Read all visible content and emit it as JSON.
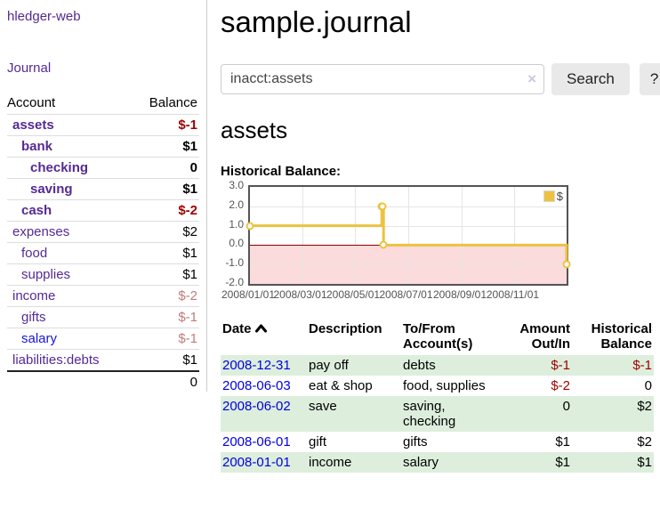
{
  "app": {
    "brand": "hledger-web"
  },
  "sidebar": {
    "journal_link": "Journal",
    "account_header": "Account",
    "balance_header": "Balance",
    "accounts": [
      {
        "label": "assets",
        "indent": 1,
        "bold": true,
        "link_color": "purple",
        "balance": "$-1",
        "balance_class": "neg-strong"
      },
      {
        "label": "bank",
        "indent": 2,
        "bold": true,
        "link_color": "purple",
        "balance": "$1",
        "balance_class": "pos"
      },
      {
        "label": "checking",
        "indent": 3,
        "bold": true,
        "link_color": "purple",
        "balance": "0",
        "balance_class": "pos"
      },
      {
        "label": "saving",
        "indent": 3,
        "bold": true,
        "link_color": "purple",
        "balance": "$1",
        "balance_class": "pos"
      },
      {
        "label": "cash",
        "indent": 2,
        "bold": true,
        "link_color": "purple",
        "balance": "$-2",
        "balance_class": "neg-strong"
      },
      {
        "label": "expenses",
        "indent": 1,
        "bold": false,
        "link_color": "purple",
        "balance": "$2",
        "balance_class": "pos"
      },
      {
        "label": "food",
        "indent": 2,
        "bold": false,
        "link_color": "purple",
        "balance": "$1",
        "balance_class": "pos"
      },
      {
        "label": "supplies",
        "indent": 2,
        "bold": false,
        "link_color": "purple",
        "balance": "$1",
        "balance_class": "pos"
      },
      {
        "label": "income",
        "indent": 1,
        "bold": false,
        "link_color": "purple",
        "balance": "$-2",
        "balance_class": "neg-soft"
      },
      {
        "label": "gifts",
        "indent": 2,
        "bold": false,
        "link_color": "purple",
        "balance": "$-1",
        "balance_class": "neg-soft"
      },
      {
        "label": "salary",
        "indent": 2,
        "bold": false,
        "link_color": "blue",
        "balance": "$-1",
        "balance_class": "neg-soft"
      },
      {
        "label": "liabilities:debts",
        "indent": 1,
        "bold": false,
        "link_color": "purple",
        "balance": "$1",
        "balance_class": "pos"
      }
    ],
    "total": "0"
  },
  "main": {
    "title": "sample.journal",
    "search": {
      "value": "inacct:assets",
      "clear_icon": "×",
      "search_button": "Search",
      "help_button": "?"
    },
    "account_heading": "assets",
    "chart_heading": "Historical Balance:",
    "register": {
      "headers": {
        "date": "Date",
        "description": "Description",
        "accounts": "To/From\nAccount(s)",
        "amount": "Amount\nOut/In",
        "balance": "Historical\nBalance"
      },
      "rows": [
        {
          "date": "2008-12-31",
          "description": "pay off",
          "accounts": "debts",
          "amount": "$-1",
          "amount_class": "neg",
          "balance": "$-1",
          "balance_class": "neg",
          "shaded": true
        },
        {
          "date": "2008-06-03",
          "description": "eat & shop",
          "accounts": "food, supplies",
          "amount": "$-2",
          "amount_class": "neg",
          "balance": "0",
          "balance_class": "pos",
          "shaded": false
        },
        {
          "date": "2008-06-02",
          "description": "save",
          "accounts": "saving,\nchecking",
          "amount": "0",
          "amount_class": "pos",
          "balance": "$2",
          "balance_class": "pos",
          "shaded": true
        },
        {
          "date": "2008-06-01",
          "description": "gift",
          "accounts": "gifts",
          "amount": "$1",
          "amount_class": "pos",
          "balance": "$2",
          "balance_class": "pos",
          "shaded": false
        },
        {
          "date": "2008-01-01",
          "description": "income",
          "accounts": "salary",
          "amount": "$1",
          "amount_class": "pos",
          "balance": "$1",
          "balance_class": "pos",
          "shaded": true
        }
      ]
    }
  },
  "chart_data": {
    "type": "line",
    "title": "Historical Balance",
    "step": true,
    "series": [
      {
        "name": "$",
        "color": "#edc240",
        "points": [
          {
            "x": "2008-01-01",
            "y": 1
          },
          {
            "x": "2008-06-01",
            "y": 2
          },
          {
            "x": "2008-06-02",
            "y": 2
          },
          {
            "x": "2008-06-03",
            "y": 0
          },
          {
            "x": "2008-12-31",
            "y": -1
          }
        ]
      }
    ],
    "xrange": [
      "2008-01-01",
      "2008-12-31"
    ],
    "ylim": [
      -2,
      3
    ],
    "yticks": [
      {
        "label": "3.0",
        "value": 3
      },
      {
        "label": "2.0",
        "value": 2
      },
      {
        "label": "1.0",
        "value": 1
      },
      {
        "label": "0.0",
        "value": 0
      },
      {
        "label": "-1.0",
        "value": -1
      },
      {
        "label": "-2.0",
        "value": -2
      }
    ],
    "xticks": [
      {
        "label": "2008/01/01",
        "date": "2008-01-01"
      },
      {
        "label": "2008/03/01",
        "date": "2008-03-01"
      },
      {
        "label": "2008/05/01",
        "date": "2008-05-01"
      },
      {
        "label": "2008/07/01",
        "date": "2008-07-01"
      },
      {
        "label": "2008/09/01",
        "date": "2008-09-01"
      },
      {
        "label": "2008/11/01",
        "date": "2008-11-01"
      }
    ],
    "legend": {
      "label": "$",
      "position": "top-right"
    },
    "grid": true,
    "zero_line_color": "#8b0000",
    "negative_region_color": "#fbdbdb"
  }
}
